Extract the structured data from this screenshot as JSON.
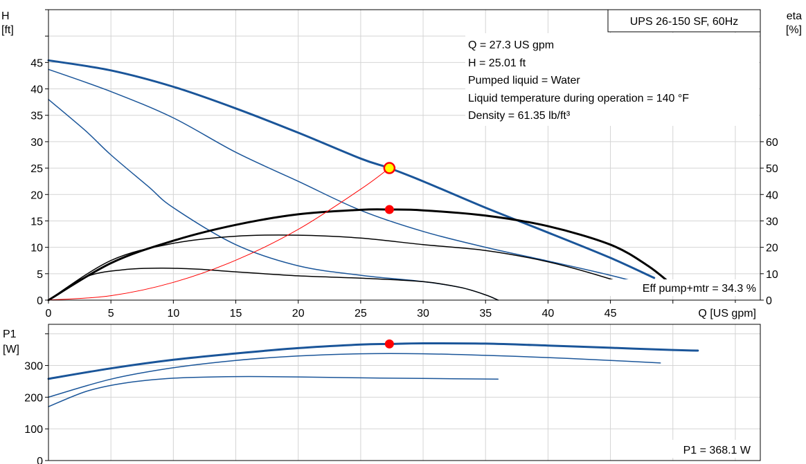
{
  "chart_data": [
    {
      "type": "line",
      "title": "UPS 26-150 SF, 60Hz",
      "ylabel": "H",
      "yunit": "[ft]",
      "ylabel_right": "eta",
      "yunit_right": "[%]",
      "xlabel": "Q [US gpm]",
      "xlim": [
        0,
        57
      ],
      "ylim": [
        0,
        55
      ],
      "ylim_right": [
        0,
        110
      ],
      "x_ticks": [
        0,
        5,
        10,
        15,
        20,
        25,
        30,
        35,
        40,
        45
      ],
      "y_ticks": [
        0,
        5,
        10,
        15,
        20,
        25,
        30,
        35,
        40,
        45
      ],
      "y_ticks_right": [
        0,
        10,
        20,
        30,
        40,
        50,
        60
      ],
      "grid": true,
      "info_lines": [
        "Q = 27.3 US gpm",
        "H = 25.01 ft",
        "Pumped liquid = Water",
        "Liquid temperature during operation = 140 °F",
        "Density = 61.35 lb/ft³"
      ],
      "annotation": "Eff pump+mtr = 34.3 %",
      "colors": {
        "head": "#1a5599",
        "efficiency": "#000000",
        "system": "#ff0000",
        "duty_point_fill": "#ffff00",
        "eff_point": "#ff0000"
      },
      "duty_point": {
        "x": 27.3,
        "y": 25.01
      },
      "eff_point": {
        "x": 27.3,
        "eta": 34.3
      },
      "series": [
        {
          "role": "head",
          "axis": "left",
          "width": 3,
          "points": [
            [
              0,
              45.4
            ],
            [
              5,
              43.5
            ],
            [
              10,
              40.4
            ],
            [
              15,
              36.3
            ],
            [
              20,
              31.7
            ],
            [
              25,
              26.8
            ],
            [
              27.3,
              25.0
            ],
            [
              30,
              22.5
            ],
            [
              35,
              17.5
            ],
            [
              40,
              12.8
            ],
            [
              45,
              8.0
            ],
            [
              48.5,
              4.2
            ]
          ]
        },
        {
          "role": "head",
          "axis": "left",
          "width": 1.5,
          "points": [
            [
              0,
              43.7
            ],
            [
              5,
              39.5
            ],
            [
              10,
              34.5
            ],
            [
              15,
              28.0
            ],
            [
              20,
              22.5
            ],
            [
              25,
              17.0
            ],
            [
              30,
              13.0
            ],
            [
              35,
              10.0
            ],
            [
              40,
              7.4
            ],
            [
              45,
              4.7
            ],
            [
              49,
              2.2
            ]
          ]
        },
        {
          "role": "head",
          "axis": "left",
          "width": 1.5,
          "points": [
            [
              0,
              38.0
            ],
            [
              3,
              32.0
            ],
            [
              5,
              27.5
            ],
            [
              8,
              21.5
            ],
            [
              10,
              17.5
            ],
            [
              15,
              10.5
            ],
            [
              20,
              6.5
            ],
            [
              25,
              4.7
            ],
            [
              30,
              3.5
            ],
            [
              33,
              2.4
            ],
            [
              35,
              1.0
            ],
            [
              36,
              0
            ]
          ]
        },
        {
          "role": "efficiency",
          "axis": "right",
          "width": 3,
          "points": [
            [
              0,
              0
            ],
            [
              5,
              14
            ],
            [
              10,
              22.5
            ],
            [
              15,
              28.5
            ],
            [
              20,
              32.5
            ],
            [
              25,
              34.2
            ],
            [
              27.3,
              34.3
            ],
            [
              30,
              34.0
            ],
            [
              35,
              32.0
            ],
            [
              40,
              28.0
            ],
            [
              45,
              21.0
            ],
            [
              48,
              13.0
            ],
            [
              50,
              5.5
            ]
          ]
        },
        {
          "role": "efficiency",
          "axis": "right",
          "width": 1.5,
          "points": [
            [
              0,
              0
            ],
            [
              5,
              15
            ],
            [
              10,
              21.5
            ],
            [
              15,
              24.2
            ],
            [
              20,
              24.6
            ],
            [
              25,
              23.5
            ],
            [
              30,
              21.0
            ],
            [
              35,
              18.8
            ],
            [
              40,
              14.5
            ],
            [
              45,
              8.0
            ],
            [
              48,
              3.0
            ]
          ]
        },
        {
          "role": "efficiency",
          "axis": "right",
          "width": 1.5,
          "points": [
            [
              0,
              0
            ],
            [
              3,
              8.8
            ],
            [
              6,
              11.5
            ],
            [
              9,
              12.1
            ],
            [
              12,
              11.7
            ],
            [
              15,
              10.7
            ],
            [
              20,
              9.2
            ],
            [
              25,
              8.3
            ],
            [
              30,
              7.0
            ],
            [
              33,
              4.8
            ],
            [
              35,
              2.0
            ],
            [
              36,
              0
            ]
          ]
        },
        {
          "role": "system",
          "axis": "left",
          "width": 1,
          "points": [
            [
              0,
              0
            ],
            [
              5,
              0.84
            ],
            [
              10,
              3.36
            ],
            [
              15,
              7.55
            ],
            [
              20,
              13.4
            ],
            [
              25,
              21.0
            ],
            [
              27.3,
              25.01
            ]
          ]
        }
      ]
    },
    {
      "type": "line",
      "ylabel": "P1",
      "yunit": "[W]",
      "xlim": [
        0,
        57
      ],
      "ylim": [
        0,
        430
      ],
      "y_ticks": [
        0,
        100,
        200,
        300
      ],
      "grid": true,
      "annotation": "P1 = 368.1 W",
      "duty_point": {
        "x": 27.3,
        "y": 368.1
      },
      "series": [
        {
          "role": "power",
          "width": 3,
          "points": [
            [
              0,
              258
            ],
            [
              5,
              291
            ],
            [
              10,
              318
            ],
            [
              15,
              338
            ],
            [
              20,
              355
            ],
            [
              25,
              366
            ],
            [
              27.3,
              368.1
            ],
            [
              30,
              370
            ],
            [
              35,
              369
            ],
            [
              40,
              363
            ],
            [
              45,
              356
            ],
            [
              50,
              349
            ],
            [
              52,
              347
            ]
          ]
        },
        {
          "role": "power",
          "width": 1.5,
          "points": [
            [
              0,
              200
            ],
            [
              5,
              257
            ],
            [
              10,
              293
            ],
            [
              15,
              316
            ],
            [
              20,
              330
            ],
            [
              25,
              337
            ],
            [
              30,
              337
            ],
            [
              35,
              332
            ],
            [
              40,
              325
            ],
            [
              45,
              316
            ],
            [
              49,
              308
            ]
          ]
        },
        {
          "role": "power",
          "width": 1.5,
          "points": [
            [
              0,
              170
            ],
            [
              3,
              218
            ],
            [
              6,
              244
            ],
            [
              10,
              260
            ],
            [
              15,
              265
            ],
            [
              20,
              264
            ],
            [
              25,
              261
            ],
            [
              30,
              259
            ],
            [
              36,
              257
            ]
          ]
        }
      ]
    }
  ]
}
